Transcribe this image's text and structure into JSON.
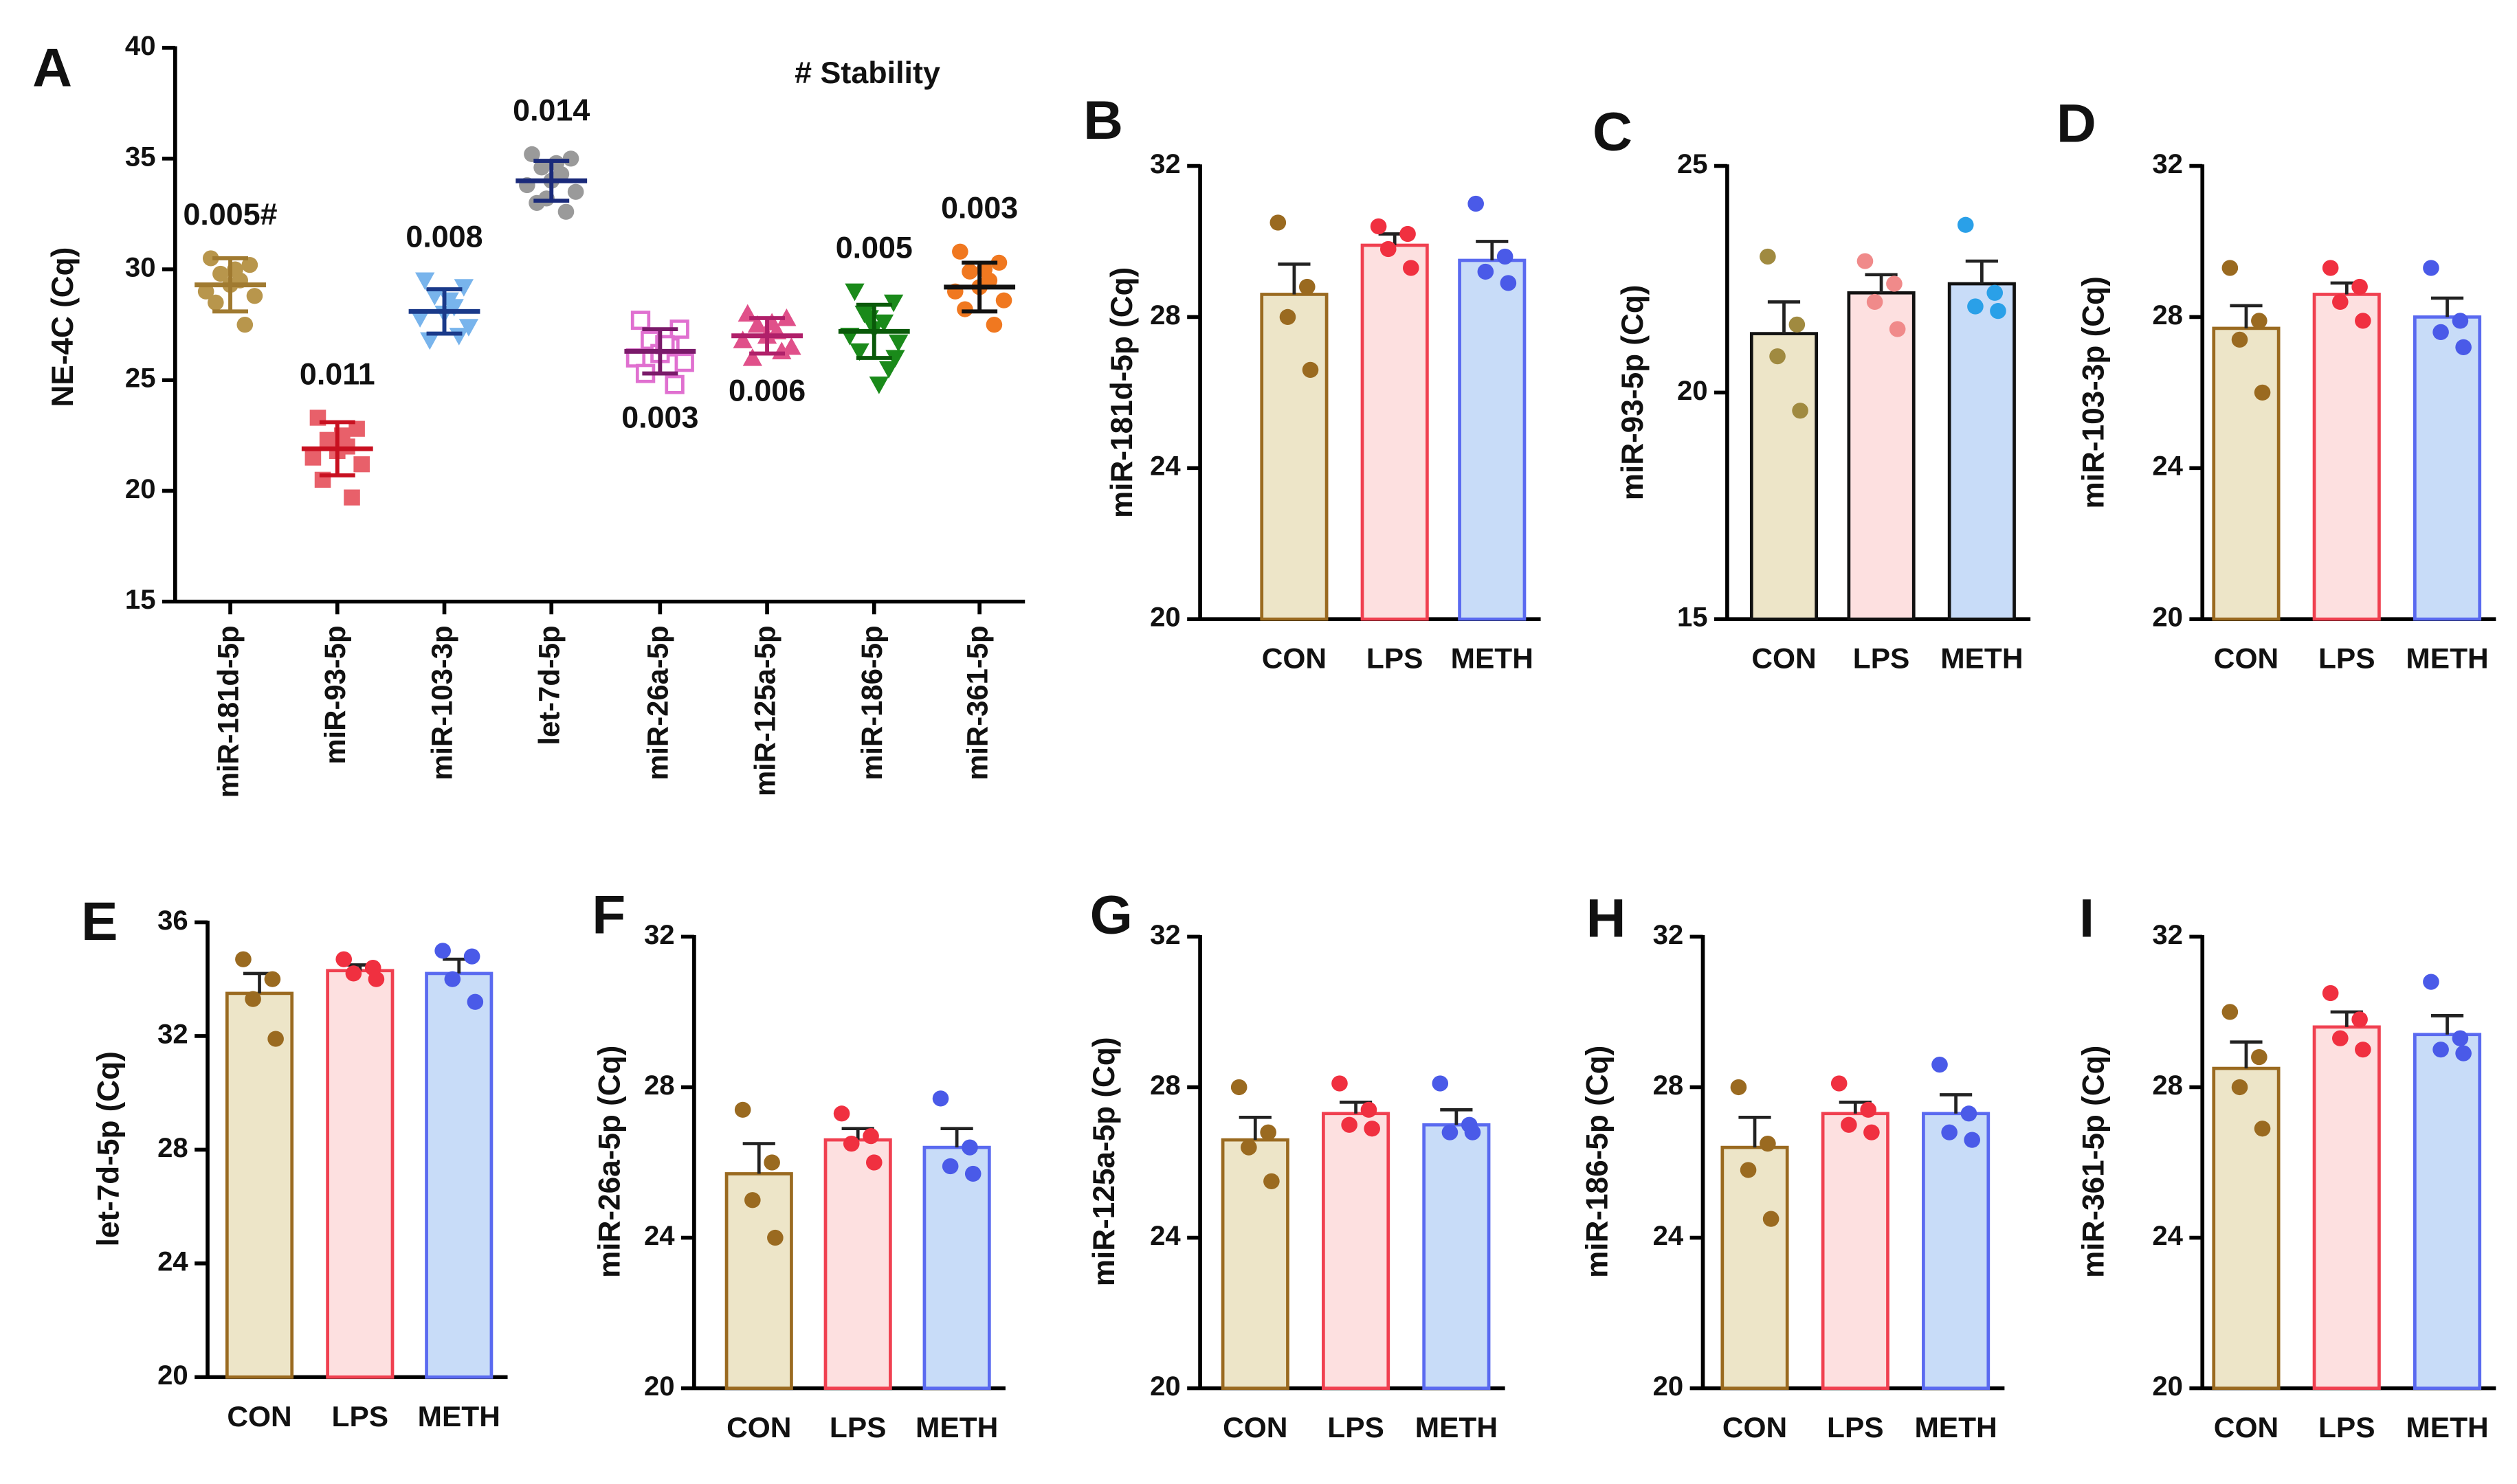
{
  "chart_data": [
    {
      "type": "dot",
      "label": "A",
      "ylabel": "NE-4C (Cq)",
      "legend_note": "# Stability",
      "categories": [
        "miR-181d-5p",
        "miR-93-5p",
        "miR-103-3p",
        "let-7d-5p",
        "miR-26a-5p",
        "miR-125a-5p",
        "miR-186-5p",
        "miR-361-5p"
      ],
      "values": [
        29.3,
        21.9,
        28.1,
        34.0,
        26.3,
        27.0,
        27.2,
        29.2
      ],
      "errors": [
        1.2,
        1.2,
        1.0,
        0.9,
        1.0,
        0.8,
        1.2,
        1.1
      ],
      "annotations": [
        "0.005#",
        "0.011",
        "0.008",
        "0.014",
        "0.003",
        "0.006",
        "0.005",
        "0.003"
      ],
      "points": [
        [
          30.5,
          30.2,
          29.8,
          29.5,
          29.3,
          29.0,
          28.8,
          28.5,
          27.5,
          30.0
        ],
        [
          23.3,
          22.8,
          22.3,
          22.0,
          21.8,
          21.5,
          21.2,
          20.5,
          19.7,
          22.5
        ],
        [
          29.5,
          29.2,
          28.8,
          28.3,
          28.0,
          27.8,
          27.4,
          26.8,
          27.0,
          28.6
        ],
        [
          35.2,
          35.0,
          34.6,
          34.3,
          34.0,
          33.8,
          33.5,
          33.0,
          32.6,
          34.8,
          33.2
        ],
        [
          27.7,
          27.3,
          26.8,
          26.5,
          26.2,
          26.0,
          25.8,
          25.3,
          24.8,
          26.6
        ],
        [
          28.0,
          27.8,
          27.5,
          27.2,
          27.0,
          26.8,
          26.5,
          26.0,
          26.3,
          27.6
        ],
        [
          29.0,
          28.5,
          28.0,
          27.6,
          27.3,
          27.0,
          26.7,
          26.3,
          25.5,
          24.8,
          27.8,
          26.0
        ],
        [
          30.8,
          30.3,
          29.9,
          29.5,
          29.2,
          29.0,
          28.6,
          28.2,
          27.5,
          30.0
        ]
      ],
      "point_colors": [
        "#b8964c",
        "#e8606a",
        "#78b4ec",
        "#9a9a9a",
        "#e070d0",
        "#e0508a",
        "#1a8a1a",
        "#f07820"
      ],
      "line_colors": [
        "#a07a30",
        "#c81020",
        "#1a3a8a",
        "#1a2a7a",
        "#7a1a6a",
        "#b0206a",
        "#0a5a0a",
        "#111111"
      ],
      "ylim": [
        15,
        40
      ],
      "yticks": [
        15,
        20,
        25,
        30,
        35,
        40
      ]
    },
    {
      "type": "bar",
      "label": "B",
      "ylabel": "miR-181d-5p (Cq)",
      "categories": [
        "CON",
        "LPS",
        "METH"
      ],
      "values": [
        28.6,
        29.9,
        29.5
      ],
      "errors": [
        0.8,
        0.3,
        0.5
      ],
      "points": [
        [
          30.5,
          28.8,
          28.0,
          26.6
        ],
        [
          30.4,
          30.2,
          29.8,
          29.3
        ],
        [
          31.0,
          29.6,
          29.2,
          28.9
        ]
      ],
      "fill_colors": [
        "#ede5c8",
        "#fde0e0",
        "#c8dcf8"
      ],
      "edge_colors": [
        "#9a6a20",
        "#f04050",
        "#5a6af0"
      ],
      "point_colors": [
        "#9a6a20",
        "#f03040",
        "#4a5ae8"
      ],
      "ylim": [
        20,
        32
      ],
      "yticks": [
        20,
        24,
        28,
        32
      ]
    },
    {
      "type": "bar",
      "label": "C",
      "ylabel": "miR-93-5p (Cq)",
      "categories": [
        "CON",
        "LPS",
        "METH"
      ],
      "values": [
        21.3,
        22.2,
        22.4
      ],
      "errors": [
        0.7,
        0.4,
        0.5
      ],
      "points": [
        [
          23.0,
          21.5,
          20.8,
          19.6
        ],
        [
          22.9,
          22.4,
          22.0,
          21.4
        ],
        [
          23.7,
          22.2,
          21.9,
          21.8
        ]
      ],
      "fill_colors": [
        "#ede5c8",
        "#fde0e0",
        "#c8dcf8"
      ],
      "edge_colors": [
        "#111111",
        "#111111",
        "#111111"
      ],
      "point_colors": [
        "#a08a40",
        "#f08a8a",
        "#2aa0e8"
      ],
      "ylim": [
        15,
        25
      ],
      "yticks": [
        15,
        20,
        25
      ]
    },
    {
      "type": "bar",
      "label": "D",
      "ylabel": "miR-103-3p (Cq)",
      "categories": [
        "CON",
        "LPS",
        "METH"
      ],
      "values": [
        27.7,
        28.6,
        28.0
      ],
      "errors": [
        0.6,
        0.3,
        0.5
      ],
      "points": [
        [
          29.3,
          27.9,
          27.4,
          26.0
        ],
        [
          29.3,
          28.8,
          28.4,
          27.9
        ],
        [
          29.3,
          27.9,
          27.6,
          27.2
        ]
      ],
      "fill_colors": [
        "#ede5c8",
        "#fde0e0",
        "#c8dcf8"
      ],
      "edge_colors": [
        "#9a6a20",
        "#f04050",
        "#5a6af0"
      ],
      "point_colors": [
        "#9a6a20",
        "#f03040",
        "#4a5ae8"
      ],
      "ylim": [
        20,
        32
      ],
      "yticks": [
        20,
        24,
        28,
        32
      ]
    },
    {
      "type": "bar",
      "label": "E",
      "ylabel": "let-7d-5p (Cq)",
      "categories": [
        "CON",
        "LPS",
        "METH"
      ],
      "values": [
        33.5,
        34.3,
        34.2
      ],
      "errors": [
        0.7,
        0.2,
        0.5
      ],
      "points": [
        [
          34.7,
          34.0,
          33.3,
          31.9
        ],
        [
          34.7,
          34.4,
          34.2,
          34.0
        ],
        [
          35.0,
          34.8,
          34.0,
          33.2
        ]
      ],
      "fill_colors": [
        "#ede5c8",
        "#fde0e0",
        "#c8dcf8"
      ],
      "edge_colors": [
        "#9a6a20",
        "#f04050",
        "#5a6af0"
      ],
      "point_colors": [
        "#9a6a20",
        "#f03040",
        "#4a5ae8"
      ],
      "ylim": [
        20,
        36
      ],
      "yticks": [
        20,
        24,
        28,
        32,
        36
      ]
    },
    {
      "type": "bar",
      "label": "F",
      "ylabel": "miR-26a-5p (Cq)",
      "categories": [
        "CON",
        "LPS",
        "METH"
      ],
      "values": [
        25.7,
        26.6,
        26.4
      ],
      "errors": [
        0.8,
        0.3,
        0.5
      ],
      "points": [
        [
          27.4,
          26.0,
          25.0,
          24.0
        ],
        [
          27.3,
          26.7,
          26.5,
          26.0
        ],
        [
          27.7,
          26.4,
          25.9,
          25.7
        ]
      ],
      "fill_colors": [
        "#ede5c8",
        "#fde0e0",
        "#c8dcf8"
      ],
      "edge_colors": [
        "#9a6a20",
        "#f04050",
        "#5a6af0"
      ],
      "point_colors": [
        "#9a6a20",
        "#f03040",
        "#4a5ae8"
      ],
      "ylim": [
        20,
        32
      ],
      "yticks": [
        20,
        24,
        28,
        32
      ]
    },
    {
      "type": "bar",
      "label": "G",
      "ylabel": "miR-125a-5p (Cq)",
      "categories": [
        "CON",
        "LPS",
        "METH"
      ],
      "values": [
        26.6,
        27.3,
        27.0
      ],
      "errors": [
        0.6,
        0.3,
        0.4
      ],
      "points": [
        [
          28.0,
          26.8,
          26.4,
          25.5
        ],
        [
          28.1,
          27.4,
          27.0,
          26.9
        ],
        [
          28.1,
          27.0,
          26.8,
          26.8
        ]
      ],
      "fill_colors": [
        "#ede5c8",
        "#fde0e0",
        "#c8dcf8"
      ],
      "edge_colors": [
        "#9a6a20",
        "#f04050",
        "#5a6af0"
      ],
      "point_colors": [
        "#9a6a20",
        "#f03040",
        "#4a5ae8"
      ],
      "ylim": [
        20,
        32
      ],
      "yticks": [
        20,
        24,
        28,
        32
      ]
    },
    {
      "type": "bar",
      "label": "H",
      "ylabel": "miR-186-5p (Cq)",
      "categories": [
        "CON",
        "LPS",
        "METH"
      ],
      "values": [
        26.4,
        27.3,
        27.3
      ],
      "errors": [
        0.8,
        0.3,
        0.5
      ],
      "points": [
        [
          28.0,
          26.5,
          25.8,
          24.5
        ],
        [
          28.1,
          27.4,
          27.0,
          26.8
        ],
        [
          28.6,
          27.3,
          26.8,
          26.6
        ]
      ],
      "fill_colors": [
        "#ede5c8",
        "#fde0e0",
        "#c8dcf8"
      ],
      "edge_colors": [
        "#9a6a20",
        "#f04050",
        "#5a6af0"
      ],
      "point_colors": [
        "#9a6a20",
        "#f03040",
        "#4a5ae8"
      ],
      "ylim": [
        20,
        32
      ],
      "yticks": [
        20,
        24,
        28,
        32
      ]
    },
    {
      "type": "bar",
      "label": "I",
      "ylabel": "miR-361-5p (Cq)",
      "categories": [
        "CON",
        "LPS",
        "METH"
      ],
      "values": [
        28.5,
        29.6,
        29.4
      ],
      "errors": [
        0.7,
        0.4,
        0.5
      ],
      "points": [
        [
          30.0,
          28.8,
          28.0,
          26.9
        ],
        [
          30.5,
          29.8,
          29.3,
          29.0
        ],
        [
          30.8,
          29.3,
          29.0,
          28.9
        ]
      ],
      "fill_colors": [
        "#ede5c8",
        "#fde0e0",
        "#c8dcf8"
      ],
      "edge_colors": [
        "#9a6a20",
        "#f04050",
        "#5a6af0"
      ],
      "point_colors": [
        "#9a6a20",
        "#f03040",
        "#4a5ae8"
      ],
      "ylim": [
        20,
        32
      ],
      "yticks": [
        20,
        24,
        28,
        32
      ]
    }
  ]
}
